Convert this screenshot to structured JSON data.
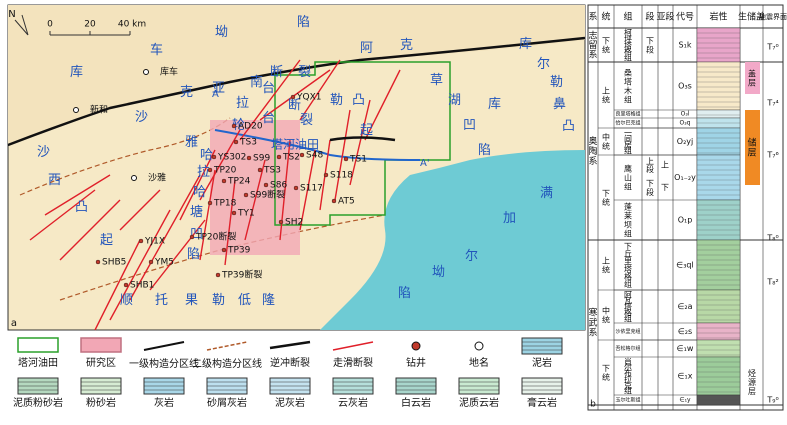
{
  "map": {
    "panel_label": "a",
    "north": "N",
    "scale": {
      "zero": "0",
      "mid": "20",
      "end": "40 km"
    },
    "regions": [
      "库车坳陷",
      "亚南断裂",
      "克轮台",
      "拉台断裂",
      "沙西凸起",
      "沙雅",
      "哈拉哈塘凹陷",
      "塔河油田",
      "顺托果勒低隆",
      "满加尔坳陷",
      "草湖凹陷",
      "库尔勒鼻凸",
      "阿克库勒凸起"
    ],
    "places": [
      "库车",
      "新和",
      "沙雅"
    ],
    "wells": [
      "AD20",
      "TS3",
      "YS302",
      "S99",
      "TS2",
      "S48",
      "TS1",
      "TP20",
      "TP24",
      "TS3",
      "S86",
      "S99断裂",
      "S118",
      "S117",
      "TP18",
      "TY1",
      "SH2",
      "AT5",
      "YJ1X",
      "TP20断裂",
      "TP39",
      "TP39断裂",
      "SHB5",
      "YM5",
      "SHB1",
      "YQX1",
      "A",
      "A'"
    ]
  },
  "legend": [
    "塔河油田",
    "研究区",
    "一级构造分区线",
    "二级构造分区线",
    "逆冲断裂",
    "走滑断裂",
    "钻井",
    "地名",
    "泥岩",
    "泥质粉砂岩",
    "粉砂岩",
    "灰岩",
    "砂屑灰岩",
    "泥灰岩",
    "云灰岩",
    "白云岩",
    "泥质云岩",
    "膏云岩"
  ],
  "column": {
    "panel_label": "b",
    "headers": [
      "系",
      "统",
      "组",
      "段",
      "亚段",
      "代号",
      "岩性",
      "生储盖",
      "地震界面"
    ],
    "systems": [
      "志留系",
      "奥陶系",
      "寒武系"
    ],
    "series": [
      "下统",
      "上统",
      "中统",
      "下统",
      "上统",
      "中统",
      "下统"
    ],
    "formations": [
      "柯坪塔格组",
      "桑塔木组",
      "良里塔格组",
      "恰尔巴克组",
      "一间房组",
      "鹰山组",
      "蓬莱坝组",
      "下丘里塔格组",
      "阿瓦塔格组",
      "沙依里克组",
      "吾松格尔组",
      "肖尔布拉克组",
      "玉尔吐斯组"
    ],
    "members": [
      "下段",
      "上段",
      "下段"
    ],
    "submembers": [
      "上",
      "下"
    ],
    "codes": [
      "S₁k",
      "O₃s",
      "O₃l",
      "O₃q",
      "O₂yj",
      "O₁₋₂y",
      "O₁p",
      "∈₃ql",
      "∈₂a",
      "∈₂s",
      "∈₁w",
      "∈₁x",
      "∈₁y"
    ],
    "source_reservoir_seal": [
      "盖层",
      "储层",
      "烃源层"
    ],
    "seismic": [
      "T₇⁰",
      "T₇⁴",
      "T₇⁶",
      "T₈⁰",
      "T₈²",
      "T₉⁰"
    ]
  }
}
